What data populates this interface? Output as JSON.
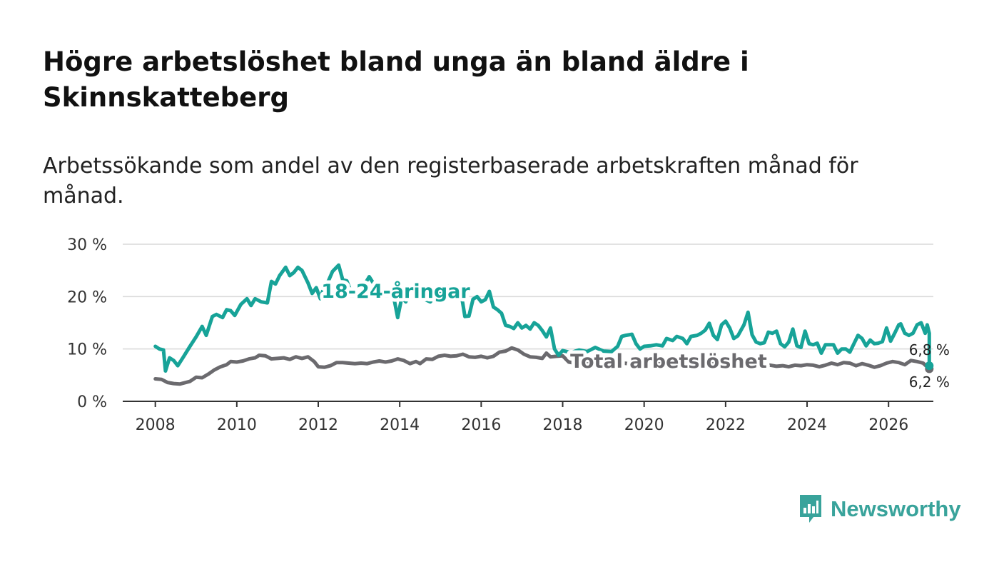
{
  "title": "Högre arbetslöshet bland unga än bland äldre i Skinnskatteberg",
  "subtitle": "Arbetssökande som andel av den registerbaserade arbetskraften månad för månad.",
  "brand": {
    "name": "Newsworthy",
    "color": "#39a39b"
  },
  "chart_data": {
    "type": "line",
    "title": "Högre arbetslöshet bland unga än bland äldre i Skinnskatteberg",
    "subtitle": "Arbetssökande som andel av den registerbaserade arbetskraften månad för månad.",
    "xlabel": "",
    "ylabel": "",
    "xlim": [
      2007.2,
      2027.1
    ],
    "ylim": [
      0,
      30
    ],
    "yticks": [
      0,
      10,
      20,
      30
    ],
    "ytick_labels": [
      "0 %",
      "10 %",
      "20 %",
      "30 %"
    ],
    "xticks": [
      2008,
      2010,
      2012,
      2014,
      2016,
      2018,
      2020,
      2022,
      2024,
      2026
    ],
    "xtick_labels": [
      "2008",
      "2010",
      "2012",
      "2014",
      "2016",
      "2018",
      "2020",
      "2022",
      "2024",
      "2026"
    ],
    "grid": true,
    "legend": "inline labels",
    "series": [
      {
        "name": "18-24-åringar",
        "color": "#17a398",
        "end_label": "6,8 %",
        "points": [
          [
            2008.0,
            10.5
          ],
          [
            2008.1,
            10.0
          ],
          [
            2008.2,
            9.8
          ],
          [
            2008.25,
            5.8
          ],
          [
            2008.35,
            8.3
          ],
          [
            2008.45,
            7.8
          ],
          [
            2008.55,
            6.8
          ],
          [
            2008.7,
            8.6
          ],
          [
            2008.85,
            10.5
          ],
          [
            2009.0,
            12.3
          ],
          [
            2009.15,
            14.3
          ],
          [
            2009.25,
            12.6
          ],
          [
            2009.4,
            16.2
          ],
          [
            2009.5,
            16.6
          ],
          [
            2009.65,
            16.0
          ],
          [
            2009.75,
            17.5
          ],
          [
            2009.85,
            17.3
          ],
          [
            2009.95,
            16.4
          ],
          [
            2010.1,
            18.5
          ],
          [
            2010.25,
            19.6
          ],
          [
            2010.35,
            18.3
          ],
          [
            2010.45,
            19.6
          ],
          [
            2010.6,
            19.0
          ],
          [
            2010.75,
            18.8
          ],
          [
            2010.85,
            22.9
          ],
          [
            2010.95,
            22.4
          ],
          [
            2011.05,
            24.0
          ],
          [
            2011.2,
            25.6
          ],
          [
            2011.3,
            24.0
          ],
          [
            2011.4,
            24.6
          ],
          [
            2011.5,
            25.6
          ],
          [
            2011.6,
            25.0
          ],
          [
            2011.75,
            22.6
          ],
          [
            2011.85,
            20.6
          ],
          [
            2011.95,
            21.7
          ],
          [
            2012.05,
            19.6
          ],
          [
            2012.15,
            22.1
          ],
          [
            2012.25,
            23.0
          ],
          [
            2012.35,
            24.8
          ],
          [
            2012.5,
            26.0
          ],
          [
            2012.6,
            23.2
          ],
          [
            2012.7,
            23.0
          ],
          [
            2012.8,
            21.0
          ],
          [
            2012.9,
            20.5
          ],
          [
            2013.0,
            21.3
          ],
          [
            2013.15,
            22.5
          ],
          [
            2013.25,
            23.8
          ],
          [
            2013.4,
            22.0
          ],
          [
            2013.55,
            21.5
          ],
          [
            2013.7,
            20.7
          ],
          [
            2013.85,
            20.0
          ],
          [
            2013.95,
            16.0
          ],
          [
            2014.05,
            19.8
          ],
          [
            2014.15,
            19.0
          ],
          [
            2014.3,
            21.8
          ],
          [
            2014.45,
            20.5
          ],
          [
            2014.6,
            19.5
          ],
          [
            2014.75,
            19.0
          ],
          [
            2014.9,
            20.3
          ],
          [
            2015.05,
            21.5
          ],
          [
            2015.2,
            22.0
          ],
          [
            2015.35,
            20.5
          ],
          [
            2015.5,
            21.0
          ],
          [
            2015.6,
            16.2
          ],
          [
            2015.7,
            16.3
          ],
          [
            2015.8,
            19.5
          ],
          [
            2015.9,
            20.0
          ],
          [
            2016.0,
            19.0
          ],
          [
            2016.1,
            19.4
          ],
          [
            2016.2,
            21.0
          ],
          [
            2016.3,
            18.0
          ],
          [
            2016.4,
            17.5
          ],
          [
            2016.5,
            16.8
          ],
          [
            2016.6,
            14.5
          ],
          [
            2016.7,
            14.3
          ],
          [
            2016.8,
            13.9
          ],
          [
            2016.9,
            15.0
          ],
          [
            2017.0,
            14.0
          ],
          [
            2017.1,
            14.5
          ],
          [
            2017.2,
            13.8
          ],
          [
            2017.3,
            15.0
          ],
          [
            2017.4,
            14.5
          ],
          [
            2017.5,
            13.5
          ],
          [
            2017.6,
            12.3
          ],
          [
            2017.7,
            14.0
          ],
          [
            2017.8,
            10.0
          ],
          [
            2017.9,
            8.8
          ],
          [
            2018.0,
            9.7
          ],
          [
            2018.2,
            9.3
          ],
          [
            2018.4,
            9.8
          ],
          [
            2018.6,
            9.5
          ],
          [
            2018.8,
            10.3
          ],
          [
            2019.0,
            9.6
          ],
          [
            2019.2,
            9.5
          ],
          [
            2019.35,
            10.5
          ],
          [
            2019.45,
            12.4
          ],
          [
            2019.55,
            12.6
          ],
          [
            2019.7,
            12.8
          ],
          [
            2019.8,
            11.0
          ],
          [
            2019.9,
            10.0
          ],
          [
            2020.0,
            10.5
          ],
          [
            2020.15,
            10.6
          ],
          [
            2020.3,
            10.8
          ],
          [
            2020.45,
            10.6
          ],
          [
            2020.55,
            12.0
          ],
          [
            2020.7,
            11.6
          ],
          [
            2020.8,
            12.4
          ],
          [
            2020.95,
            12.0
          ],
          [
            2021.05,
            11.0
          ],
          [
            2021.15,
            12.4
          ],
          [
            2021.3,
            12.6
          ],
          [
            2021.4,
            13.0
          ],
          [
            2021.5,
            13.6
          ],
          [
            2021.6,
            14.9
          ],
          [
            2021.7,
            12.6
          ],
          [
            2021.8,
            11.8
          ],
          [
            2021.9,
            14.6
          ],
          [
            2022.0,
            15.3
          ],
          [
            2022.1,
            14.0
          ],
          [
            2022.2,
            12.0
          ],
          [
            2022.3,
            12.5
          ],
          [
            2022.45,
            14.6
          ],
          [
            2022.55,
            17.0
          ],
          [
            2022.65,
            12.7
          ],
          [
            2022.75,
            11.3
          ],
          [
            2022.85,
            11.0
          ],
          [
            2022.95,
            11.2
          ],
          [
            2023.05,
            13.2
          ],
          [
            2023.15,
            13.0
          ],
          [
            2023.25,
            13.4
          ],
          [
            2023.35,
            11.0
          ],
          [
            2023.45,
            10.4
          ],
          [
            2023.55,
            11.3
          ],
          [
            2023.65,
            13.8
          ],
          [
            2023.75,
            10.6
          ],
          [
            2023.85,
            10.3
          ],
          [
            2023.95,
            13.4
          ],
          [
            2024.05,
            11.0
          ],
          [
            2024.15,
            10.8
          ],
          [
            2024.25,
            11.1
          ],
          [
            2024.35,
            9.2
          ],
          [
            2024.45,
            10.8
          ],
          [
            2024.55,
            10.8
          ],
          [
            2024.65,
            10.8
          ],
          [
            2024.75,
            9.2
          ],
          [
            2024.85,
            10.0
          ],
          [
            2024.95,
            10.0
          ],
          [
            2025.05,
            9.4
          ],
          [
            2025.15,
            11.0
          ],
          [
            2025.25,
            12.6
          ],
          [
            2025.35,
            12.0
          ],
          [
            2025.45,
            10.6
          ],
          [
            2025.55,
            11.7
          ],
          [
            2025.65,
            11.0
          ],
          [
            2025.75,
            11.1
          ],
          [
            2025.85,
            11.4
          ],
          [
            2025.95,
            14.0
          ],
          [
            2026.05,
            11.5
          ],
          [
            2026.15,
            13.0
          ],
          [
            2026.25,
            14.6
          ],
          [
            2026.3,
            14.8
          ],
          [
            2026.4,
            13.0
          ],
          [
            2026.5,
            12.6
          ],
          [
            2026.6,
            13.0
          ],
          [
            2026.7,
            14.6
          ],
          [
            2026.8,
            15.0
          ],
          [
            2026.9,
            13.0
          ],
          [
            2026.95,
            14.6
          ],
          [
            2027.0,
            13.0
          ],
          [
            2027.0,
            6.8
          ]
        ]
      },
      {
        "name": "Total arbetslöshet",
        "color": "#6b6a6e",
        "end_label": "6,2 %",
        "points": [
          [
            2008.0,
            4.3
          ],
          [
            2008.15,
            4.2
          ],
          [
            2008.3,
            3.6
          ],
          [
            2008.45,
            3.4
          ],
          [
            2008.6,
            3.3
          ],
          [
            2008.75,
            3.6
          ],
          [
            2008.85,
            3.8
          ],
          [
            2009.0,
            4.6
          ],
          [
            2009.15,
            4.5
          ],
          [
            2009.3,
            5.2
          ],
          [
            2009.45,
            6.0
          ],
          [
            2009.6,
            6.6
          ],
          [
            2009.75,
            7.0
          ],
          [
            2009.85,
            7.6
          ],
          [
            2010.0,
            7.5
          ],
          [
            2010.15,
            7.7
          ],
          [
            2010.3,
            8.1
          ],
          [
            2010.45,
            8.3
          ],
          [
            2010.55,
            8.8
          ],
          [
            2010.7,
            8.7
          ],
          [
            2010.85,
            8.1
          ],
          [
            2011.0,
            8.2
          ],
          [
            2011.15,
            8.3
          ],
          [
            2011.3,
            8.0
          ],
          [
            2011.45,
            8.5
          ],
          [
            2011.6,
            8.2
          ],
          [
            2011.75,
            8.5
          ],
          [
            2011.9,
            7.6
          ],
          [
            2012.0,
            6.6
          ],
          [
            2012.15,
            6.5
          ],
          [
            2012.3,
            6.8
          ],
          [
            2012.45,
            7.4
          ],
          [
            2012.6,
            7.4
          ],
          [
            2012.75,
            7.3
          ],
          [
            2012.9,
            7.2
          ],
          [
            2013.05,
            7.3
          ],
          [
            2013.2,
            7.2
          ],
          [
            2013.35,
            7.5
          ],
          [
            2013.5,
            7.7
          ],
          [
            2013.65,
            7.5
          ],
          [
            2013.8,
            7.7
          ],
          [
            2013.95,
            8.1
          ],
          [
            2014.1,
            7.8
          ],
          [
            2014.25,
            7.2
          ],
          [
            2014.4,
            7.6
          ],
          [
            2014.5,
            7.2
          ],
          [
            2014.65,
            8.1
          ],
          [
            2014.8,
            8.0
          ],
          [
            2014.95,
            8.6
          ],
          [
            2015.1,
            8.8
          ],
          [
            2015.25,
            8.6
          ],
          [
            2015.4,
            8.7
          ],
          [
            2015.55,
            9.0
          ],
          [
            2015.7,
            8.5
          ],
          [
            2015.85,
            8.4
          ],
          [
            2016.0,
            8.6
          ],
          [
            2016.15,
            8.3
          ],
          [
            2016.3,
            8.6
          ],
          [
            2016.45,
            9.4
          ],
          [
            2016.6,
            9.6
          ],
          [
            2016.75,
            10.2
          ],
          [
            2016.9,
            9.8
          ],
          [
            2017.05,
            9.0
          ],
          [
            2017.2,
            8.5
          ],
          [
            2017.35,
            8.4
          ],
          [
            2017.5,
            8.2
          ],
          [
            2017.6,
            9.2
          ],
          [
            2017.7,
            8.5
          ],
          [
            2017.85,
            8.6
          ],
          [
            2018.0,
            8.7
          ],
          [
            2018.15,
            7.5
          ],
          [
            2018.3,
            7.3
          ],
          [
            2018.5,
            7.2
          ],
          [
            2018.7,
            7.4
          ],
          [
            2018.9,
            7.2
          ],
          [
            2019.1,
            7.3
          ],
          [
            2019.3,
            7.2
          ],
          [
            2019.5,
            7.3
          ],
          [
            2019.7,
            7.1
          ],
          [
            2019.9,
            7.2
          ],
          [
            2020.1,
            7.3
          ],
          [
            2020.3,
            7.4
          ],
          [
            2020.5,
            7.4
          ],
          [
            2020.7,
            7.5
          ],
          [
            2020.9,
            7.6
          ],
          [
            2021.1,
            7.5
          ],
          [
            2021.3,
            7.6
          ],
          [
            2021.5,
            7.5
          ],
          [
            2021.7,
            7.4
          ],
          [
            2021.9,
            7.5
          ],
          [
            2022.1,
            7.4
          ],
          [
            2022.3,
            7.3
          ],
          [
            2022.5,
            7.4
          ],
          [
            2022.65,
            7.5
          ],
          [
            2022.8,
            7.1
          ],
          [
            2022.95,
            6.8
          ],
          [
            2023.1,
            6.9
          ],
          [
            2023.25,
            6.7
          ],
          [
            2023.4,
            6.8
          ],
          [
            2023.55,
            6.6
          ],
          [
            2023.7,
            6.9
          ],
          [
            2023.85,
            6.8
          ],
          [
            2024.0,
            7.0
          ],
          [
            2024.15,
            6.9
          ],
          [
            2024.3,
            6.6
          ],
          [
            2024.45,
            6.9
          ],
          [
            2024.6,
            7.3
          ],
          [
            2024.75,
            7.0
          ],
          [
            2024.9,
            7.4
          ],
          [
            2025.05,
            7.3
          ],
          [
            2025.2,
            6.8
          ],
          [
            2025.35,
            7.2
          ],
          [
            2025.5,
            6.9
          ],
          [
            2025.65,
            6.5
          ],
          [
            2025.8,
            6.8
          ],
          [
            2025.95,
            7.3
          ],
          [
            2026.1,
            7.6
          ],
          [
            2026.25,
            7.4
          ],
          [
            2026.4,
            7.0
          ],
          [
            2026.55,
            7.8
          ],
          [
            2026.7,
            7.6
          ],
          [
            2026.85,
            7.3
          ],
          [
            2027.0,
            6.2
          ]
        ]
      }
    ]
  }
}
